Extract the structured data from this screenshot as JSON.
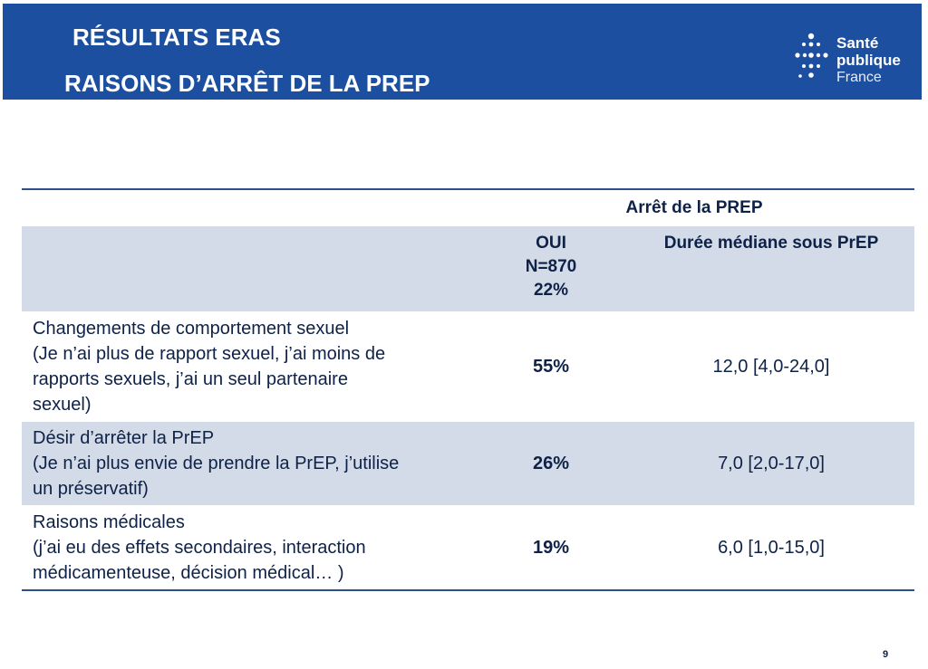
{
  "header": {
    "title_line1": "RÉSULTATS ERAS",
    "title_line2": "RAISONS D’ARRÊT DE LA PREP",
    "background_color": "#1c4fa0"
  },
  "logo": {
    "line1": "Santé",
    "line2": "publique",
    "line3": "France"
  },
  "table": {
    "group_header": "Arrêt de la PREP",
    "col_oui": {
      "line1": "OUI",
      "line2": "N=870",
      "line3": "22%"
    },
    "col_duration": "Durée médiane sous PrEP",
    "rows": [
      {
        "label_line1": "Changements de comportement sexuel",
        "label_line2": "(Je n’ai plus de rapport sexuel, j’ai moins de",
        "label_line3": "rapports sexuels, j’ai un seul partenaire",
        "label_line4": "sexuel)",
        "percent": "55%",
        "median": "12,0 [4,0-24,0]"
      },
      {
        "label_line1": "Désir d’arrêter la PrEP",
        "label_line2": "(Je n’ai plus envie de prendre la PrEP, j’utilise",
        "label_line3": "un préservatif)",
        "percent": "26%",
        "median": "7,0 [2,0-17,0]"
      },
      {
        "label_line1": "Raisons médicales",
        "label_line2": "(j’ai eu des effets secondaires, interaction",
        "label_line3": "médicamenteuse, décision médical… )",
        "percent": "19%",
        "median": "6,0 [1,0-15,0]"
      }
    ],
    "band_color": "#d2dbe7"
  },
  "page_number": "9"
}
